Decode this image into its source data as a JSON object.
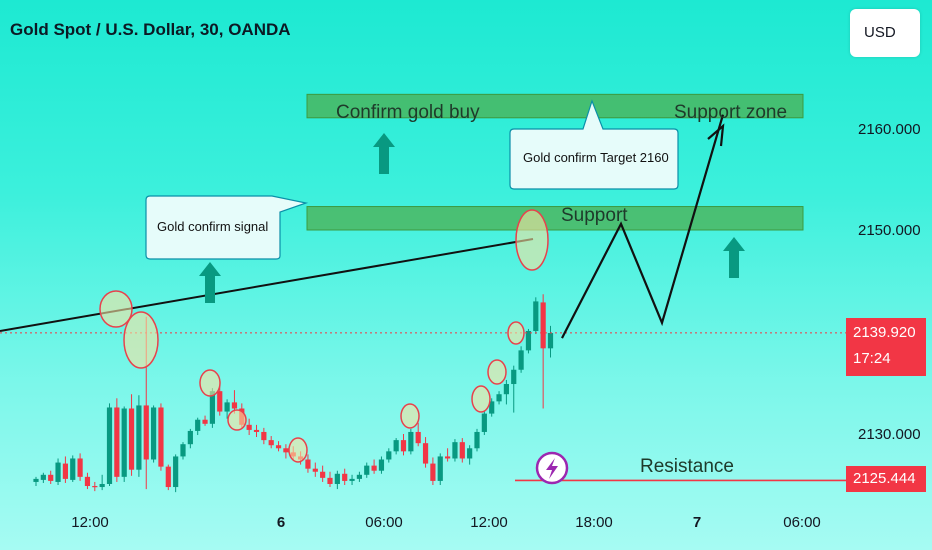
{
  "header": {
    "title": "Gold Spot / U.S. Dollar, 30, OANDA",
    "currency_button": "USD"
  },
  "colors": {
    "up": "#089981",
    "down": "#f23645",
    "zone": "#4caf50",
    "price_line": "#f23645"
  },
  "price_tags": {
    "last_price": "2139.920",
    "countdown": "17:24",
    "resistance_price": "2125.444"
  },
  "annotations": {
    "confirm_zone": "Confirm gold buy",
    "support_zone": "Support zone",
    "support": "Support",
    "resistance": "Resistance",
    "callout_signal": "Gold confirm signal",
    "callout_target": "Gold confirm Target 2160"
  },
  "chart_data": {
    "type": "candlestick",
    "title": "Gold Spot / U.S. Dollar, 30, OANDA",
    "y_axis": {
      "ticks": [
        2130,
        2140,
        2150,
        2160
      ],
      "tick_labels": [
        "2130.000",
        "",
        "2150.000",
        "2160.000"
      ],
      "range": [
        2124.5,
        2168
      ]
    },
    "x_axis": {
      "tick_labels": [
        "12:00",
        "6",
        "06:00",
        "12:00",
        "18:00",
        "7",
        "06:00"
      ]
    },
    "last_price": 2139.92,
    "resistance_level": 2125.444,
    "zones": [
      {
        "name": "Confirm gold buy / Support zone",
        "from": 2161,
        "to": 2163.3
      },
      {
        "name": "Support",
        "from": 2150,
        "to": 2152.3
      }
    ],
    "candles": [
      [
        2125.3,
        2125.8,
        2124.9,
        2125.6
      ],
      [
        2125.5,
        2126.2,
        2125.2,
        2126.0
      ],
      [
        2126.0,
        2126.4,
        2125.1,
        2125.4
      ],
      [
        2125.3,
        2127.6,
        2125.0,
        2127.2
      ],
      [
        2127.1,
        2127.8,
        2125.2,
        2125.6
      ],
      [
        2125.5,
        2127.9,
        2125.3,
        2127.6
      ],
      [
        2127.6,
        2128.1,
        2125.4,
        2125.8
      ],
      [
        2125.8,
        2126.2,
        2124.6,
        2124.9
      ],
      [
        2124.9,
        2125.3,
        2124.4,
        2124.8
      ],
      [
        2124.8,
        2126.0,
        2124.5,
        2125.1
      ],
      [
        2125.1,
        2133.0,
        2124.9,
        2132.6
      ],
      [
        2132.6,
        2133.5,
        2125.3,
        2125.8
      ],
      [
        2125.8,
        2132.7,
        2125.3,
        2132.5
      ],
      [
        2132.5,
        2133.9,
        2125.9,
        2126.5
      ],
      [
        2126.5,
        2133.8,
        2125.8,
        2132.8
      ],
      [
        2132.8,
        2141.5,
        2124.6,
        2127.5
      ],
      [
        2127.5,
        2132.8,
        2127.2,
        2132.6
      ],
      [
        2132.6,
        2133.0,
        2126.4,
        2126.8
      ],
      [
        2126.8,
        2127.0,
        2124.5,
        2124.8
      ],
      [
        2124.8,
        2128.0,
        2124.3,
        2127.8
      ],
      [
        2127.8,
        2129.2,
        2127.5,
        2129.0
      ],
      [
        2129.0,
        2130.5,
        2128.6,
        2130.3
      ],
      [
        2130.3,
        2131.6,
        2129.9,
        2131.4
      ],
      [
        2131.4,
        2131.8,
        2130.8,
        2131.0
      ],
      [
        2131.0,
        2134.5,
        2130.6,
        2134.2
      ],
      [
        2134.2,
        2134.7,
        2131.8,
        2132.2
      ],
      [
        2132.2,
        2133.4,
        2131.5,
        2133.1
      ],
      [
        2133.1,
        2134.3,
        2132.0,
        2132.5
      ],
      [
        2132.5,
        2133.0,
        2130.5,
        2130.9
      ],
      [
        2130.9,
        2131.5,
        2129.9,
        2130.4
      ],
      [
        2130.4,
        2130.9,
        2129.7,
        2130.2
      ],
      [
        2130.2,
        2130.6,
        2129.0,
        2129.4
      ],
      [
        2129.4,
        2129.8,
        2128.6,
        2128.9
      ],
      [
        2128.9,
        2129.3,
        2128.3,
        2128.6
      ],
      [
        2128.6,
        2129.0,
        2127.6,
        2128.2
      ],
      [
        2128.2,
        2128.8,
        2127.4,
        2127.8
      ],
      [
        2127.8,
        2128.3,
        2127.0,
        2127.5
      ],
      [
        2127.5,
        2128.0,
        2126.2,
        2126.6
      ],
      [
        2126.6,
        2127.2,
        2125.8,
        2126.3
      ],
      [
        2126.3,
        2126.9,
        2125.3,
        2125.7
      ],
      [
        2125.7,
        2126.3,
        2124.8,
        2125.1
      ],
      [
        2125.1,
        2126.4,
        2124.6,
        2126.1
      ],
      [
        2126.1,
        2126.6,
        2125.0,
        2125.4
      ],
      [
        2125.4,
        2126.0,
        2125.0,
        2125.6
      ],
      [
        2125.6,
        2126.3,
        2125.3,
        2126.0
      ],
      [
        2126.0,
        2127.2,
        2125.7,
        2126.9
      ],
      [
        2126.9,
        2127.5,
        2126.1,
        2126.4
      ],
      [
        2126.4,
        2127.8,
        2126.1,
        2127.5
      ],
      [
        2127.5,
        2128.6,
        2127.2,
        2128.3
      ],
      [
        2128.3,
        2129.6,
        2128.0,
        2129.4
      ],
      [
        2129.4,
        2130.0,
        2127.9,
        2128.3
      ],
      [
        2128.3,
        2130.5,
        2128.0,
        2130.2
      ],
      [
        2130.2,
        2131.1,
        2128.8,
        2129.1
      ],
      [
        2129.1,
        2129.7,
        2126.7,
        2127.1
      ],
      [
        2127.1,
        2127.7,
        2125.0,
        2125.4
      ],
      [
        2125.4,
        2128.1,
        2125.0,
        2127.8
      ],
      [
        2127.8,
        2128.6,
        2127.3,
        2127.6
      ],
      [
        2127.6,
        2129.5,
        2127.3,
        2129.2
      ],
      [
        2129.2,
        2129.6,
        2127.2,
        2127.6
      ],
      [
        2127.6,
        2128.9,
        2127.0,
        2128.6
      ],
      [
        2128.6,
        2130.5,
        2128.3,
        2130.2
      ],
      [
        2130.2,
        2132.3,
        2129.9,
        2132.0
      ],
      [
        2132.0,
        2133.5,
        2131.7,
        2133.2
      ],
      [
        2133.2,
        2134.2,
        2132.9,
        2133.9
      ],
      [
        2133.9,
        2135.3,
        2132.9,
        2134.9
      ],
      [
        2134.9,
        2136.7,
        2132.1,
        2136.3
      ],
      [
        2136.3,
        2138.6,
        2136.0,
        2138.2
      ],
      [
        2138.2,
        2140.3,
        2137.9,
        2140.1
      ],
      [
        2140.1,
        2143.4,
        2139.8,
        2143.0
      ],
      [
        2142.9,
        2143.7,
        2132.5,
        2138.4
      ],
      [
        2138.4,
        2140.6,
        2137.5,
        2139.9
      ]
    ],
    "projection_path": [
      [
        562,
        2139.4
      ],
      [
        621,
        2150.6
      ],
      [
        662,
        2140.9
      ],
      [
        723,
        2161.3
      ]
    ]
  }
}
